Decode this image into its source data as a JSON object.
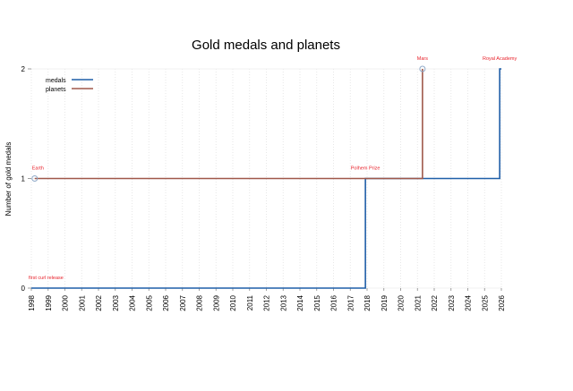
{
  "chart_data": {
    "type": "line",
    "title": "Gold medals and planets",
    "xlabel": "",
    "ylabel": "Number of gold medals",
    "xlim": [
      1998,
      2026
    ],
    "ylim": [
      0,
      2
    ],
    "x_ticks": [
      "1998",
      "1999",
      "2000",
      "2001",
      "2002",
      "2003",
      "2004",
      "2005",
      "2006",
      "2007",
      "2008",
      "2009",
      "2010",
      "2011",
      "2012",
      "2013",
      "2014",
      "2015",
      "2016",
      "2017",
      "2018",
      "2019",
      "2020",
      "2021",
      "2022",
      "2023",
      "2024",
      "2025",
      "2026"
    ],
    "y_ticks": [
      "0",
      "1",
      "2"
    ],
    "step": "post",
    "grid": true,
    "legend_position": "top-left",
    "series": [
      {
        "name": "medals",
        "color": "#1f5fa8",
        "x": [
          1998.0,
          2017.9,
          2025.9,
          2026.0
        ],
        "y": [
          0,
          1,
          2,
          2
        ]
      },
      {
        "name": "planets",
        "color": "#a0584a",
        "x": [
          1998.2,
          2021.3,
          2021.3
        ],
        "y": [
          1,
          2,
          2
        ]
      }
    ],
    "annotations": [
      {
        "text": "first curl release",
        "x": 1998.0,
        "y": 0,
        "color": "#e8212a"
      },
      {
        "text": "Earth",
        "x": 1998.2,
        "y": 1,
        "color": "#e8212a"
      },
      {
        "text": "Polhem Prize",
        "x": 2017.9,
        "y": 1,
        "color": "#e8212a"
      },
      {
        "text": "Mars",
        "x": 2021.3,
        "y": 2,
        "color": "#e8212a"
      },
      {
        "text": "Royal Academy",
        "x": 2025.9,
        "y": 2,
        "color": "#e8212a"
      }
    ],
    "markers": [
      {
        "x": 1998.2,
        "y": 1
      },
      {
        "x": 2021.3,
        "y": 2
      }
    ]
  }
}
